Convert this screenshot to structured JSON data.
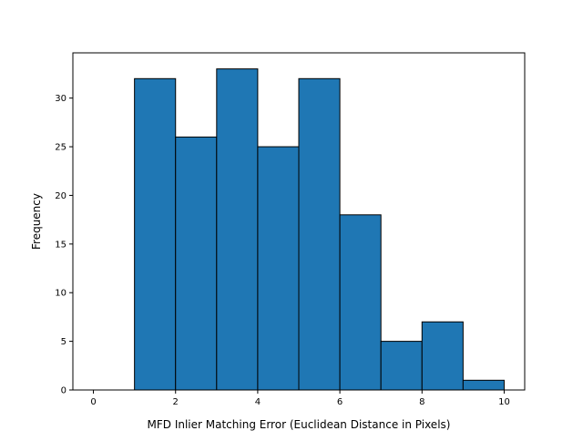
{
  "chart_data": {
    "type": "bar",
    "subtype": "histogram",
    "xlabel": "MFD Inlier Matching Error (Euclidean Distance in Pixels)",
    "ylabel": "Frequency",
    "xlim": [
      -0.5,
      10.5
    ],
    "ylim": [
      0,
      34.65
    ],
    "bin_edges": [
      0,
      1,
      2,
      3,
      4,
      5,
      6,
      7,
      8,
      9,
      10
    ],
    "values": [
      0,
      32,
      26,
      33,
      25,
      32,
      18,
      5,
      7,
      1
    ],
    "xticks": [
      0,
      2,
      4,
      6,
      8,
      10
    ],
    "yticks": [
      0,
      5,
      10,
      15,
      20,
      25,
      30
    ],
    "bar_color": "#1f77b4",
    "edge_color": "#000000",
    "grid": false,
    "legend": false
  }
}
